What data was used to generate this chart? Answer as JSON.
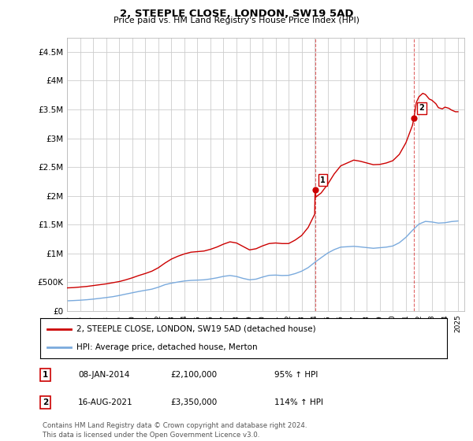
{
  "title": "2, STEEPLE CLOSE, LONDON, SW19 5AD",
  "subtitle": "Price paid vs. HM Land Registry's House Price Index (HPI)",
  "ylim": [
    0,
    4750000
  ],
  "yticks": [
    0,
    500000,
    1000000,
    1500000,
    2000000,
    2500000,
    3000000,
    3500000,
    4000000,
    4500000
  ],
  "ytick_labels": [
    "£0",
    "£500K",
    "£1M",
    "£1.5M",
    "£2M",
    "£2.5M",
    "£3M",
    "£3.5M",
    "£4M",
    "£4.5M"
  ],
  "xlim_start": 1995.0,
  "xlim_end": 2025.5,
  "sale1_date": 2014.03,
  "sale1_value": 2100000,
  "sale2_date": 2021.62,
  "sale2_value": 3350000,
  "red_line_color": "#cc0000",
  "blue_line_color": "#7aaadd",
  "sale_dot_color": "#cc0000",
  "vline_color": "#cc0000",
  "grid_color": "#cccccc",
  "bg_color": "#ffffff",
  "legend_label_red": "2, STEEPLE CLOSE, LONDON, SW19 5AD (detached house)",
  "legend_label_blue": "HPI: Average price, detached house, Merton",
  "annotation1_date": "08-JAN-2014",
  "annotation1_price": "£2,100,000",
  "annotation1_pct": "95% ↑ HPI",
  "annotation2_date": "16-AUG-2021",
  "annotation2_price": "£3,350,000",
  "annotation2_pct": "114% ↑ HPI",
  "footer": "Contains HM Land Registry data © Crown copyright and database right 2024.\nThis data is licensed under the Open Government Licence v3.0.",
  "red_hpi_data": [
    [
      1995.0,
      400000
    ],
    [
      1995.5,
      405000
    ],
    [
      1996.0,
      415000
    ],
    [
      1996.5,
      425000
    ],
    [
      1997.0,
      440000
    ],
    [
      1997.5,
      455000
    ],
    [
      1998.0,
      470000
    ],
    [
      1998.5,
      490000
    ],
    [
      1999.0,
      510000
    ],
    [
      1999.5,
      540000
    ],
    [
      2000.0,
      575000
    ],
    [
      2000.5,
      615000
    ],
    [
      2001.0,
      650000
    ],
    [
      2001.5,
      690000
    ],
    [
      2002.0,
      750000
    ],
    [
      2002.5,
      830000
    ],
    [
      2003.0,
      900000
    ],
    [
      2003.5,
      950000
    ],
    [
      2004.0,
      990000
    ],
    [
      2004.5,
      1020000
    ],
    [
      2005.0,
      1030000
    ],
    [
      2005.5,
      1040000
    ],
    [
      2006.0,
      1070000
    ],
    [
      2006.5,
      1110000
    ],
    [
      2007.0,
      1160000
    ],
    [
      2007.5,
      1200000
    ],
    [
      2008.0,
      1180000
    ],
    [
      2008.5,
      1120000
    ],
    [
      2009.0,
      1060000
    ],
    [
      2009.5,
      1080000
    ],
    [
      2010.0,
      1130000
    ],
    [
      2010.5,
      1170000
    ],
    [
      2011.0,
      1180000
    ],
    [
      2011.5,
      1170000
    ],
    [
      2012.0,
      1170000
    ],
    [
      2012.5,
      1230000
    ],
    [
      2013.0,
      1310000
    ],
    [
      2013.5,
      1450000
    ],
    [
      2014.0,
      1680000
    ],
    [
      2014.03,
      2100000
    ],
    [
      2014.1,
      1980000
    ],
    [
      2014.5,
      2050000
    ],
    [
      2015.0,
      2200000
    ],
    [
      2015.5,
      2380000
    ],
    [
      2016.0,
      2520000
    ],
    [
      2016.5,
      2570000
    ],
    [
      2017.0,
      2620000
    ],
    [
      2017.5,
      2600000
    ],
    [
      2018.0,
      2570000
    ],
    [
      2018.5,
      2540000
    ],
    [
      2019.0,
      2545000
    ],
    [
      2019.5,
      2570000
    ],
    [
      2020.0,
      2610000
    ],
    [
      2020.5,
      2720000
    ],
    [
      2021.0,
      2920000
    ],
    [
      2021.5,
      3220000
    ],
    [
      2021.62,
      3350000
    ],
    [
      2021.8,
      3620000
    ],
    [
      2022.0,
      3720000
    ],
    [
      2022.3,
      3780000
    ],
    [
      2022.5,
      3760000
    ],
    [
      2022.8,
      3680000
    ],
    [
      2023.0,
      3660000
    ],
    [
      2023.3,
      3600000
    ],
    [
      2023.5,
      3530000
    ],
    [
      2023.8,
      3510000
    ],
    [
      2024.0,
      3540000
    ],
    [
      2024.3,
      3520000
    ],
    [
      2024.5,
      3490000
    ],
    [
      2024.8,
      3460000
    ],
    [
      2025.0,
      3460000
    ]
  ],
  "blue_hpi_data": [
    [
      1995.0,
      175000
    ],
    [
      1995.5,
      180000
    ],
    [
      1996.0,
      186000
    ],
    [
      1996.5,
      194000
    ],
    [
      1997.0,
      205000
    ],
    [
      1997.5,
      218000
    ],
    [
      1998.0,
      232000
    ],
    [
      1998.5,
      247000
    ],
    [
      1999.0,
      268000
    ],
    [
      1999.5,
      292000
    ],
    [
      2000.0,
      315000
    ],
    [
      2000.5,
      338000
    ],
    [
      2001.0,
      358000
    ],
    [
      2001.5,
      378000
    ],
    [
      2002.0,
      412000
    ],
    [
      2002.5,
      455000
    ],
    [
      2003.0,
      482000
    ],
    [
      2003.5,
      502000
    ],
    [
      2004.0,
      520000
    ],
    [
      2004.5,
      530000
    ],
    [
      2005.0,
      535000
    ],
    [
      2005.5,
      540000
    ],
    [
      2006.0,
      555000
    ],
    [
      2006.5,
      575000
    ],
    [
      2007.0,
      600000
    ],
    [
      2007.5,
      615000
    ],
    [
      2008.0,
      598000
    ],
    [
      2008.5,
      565000
    ],
    [
      2009.0,
      540000
    ],
    [
      2009.5,
      552000
    ],
    [
      2010.0,
      588000
    ],
    [
      2010.5,
      618000
    ],
    [
      2011.0,
      622000
    ],
    [
      2011.5,
      615000
    ],
    [
      2012.0,
      618000
    ],
    [
      2012.5,
      648000
    ],
    [
      2013.0,
      690000
    ],
    [
      2013.5,
      752000
    ],
    [
      2014.0,
      842000
    ],
    [
      2014.5,
      925000
    ],
    [
      2015.0,
      1005000
    ],
    [
      2015.5,
      1065000
    ],
    [
      2016.0,
      1108000
    ],
    [
      2016.5,
      1115000
    ],
    [
      2017.0,
      1122000
    ],
    [
      2017.5,
      1112000
    ],
    [
      2018.0,
      1100000
    ],
    [
      2018.5,
      1088000
    ],
    [
      2019.0,
      1098000
    ],
    [
      2019.5,
      1108000
    ],
    [
      2020.0,
      1128000
    ],
    [
      2020.5,
      1185000
    ],
    [
      2021.0,
      1278000
    ],
    [
      2021.5,
      1398000
    ],
    [
      2022.0,
      1508000
    ],
    [
      2022.5,
      1555000
    ],
    [
      2023.0,
      1545000
    ],
    [
      2023.5,
      1525000
    ],
    [
      2024.0,
      1532000
    ],
    [
      2024.5,
      1552000
    ],
    [
      2025.0,
      1562000
    ]
  ]
}
